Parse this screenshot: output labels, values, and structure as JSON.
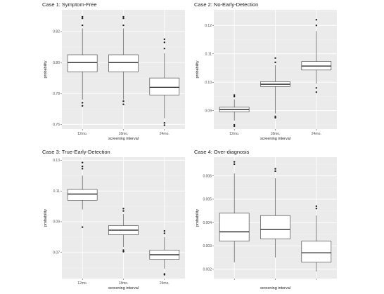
{
  "chart_data": [
    {
      "type": "box",
      "title": "Case 1: Symptom-Free",
      "xlabel": "screening interval",
      "ylabel": "probability",
      "categories": [
        "12mo.",
        "18mo.",
        "24mo."
      ],
      "ylim": [
        0.757,
        0.834
      ],
      "yticks": [
        0.76,
        0.78,
        0.8,
        0.82
      ],
      "ytick_labels": [
        "0.76",
        "0.78",
        "0.80",
        "0.82"
      ],
      "boxes": [
        {
          "category": "12mo.",
          "whisker_low": 0.776,
          "q1": 0.794,
          "median": 0.8,
          "q3": 0.805,
          "whisker_high": 0.822,
          "outliers": [
            0.8285,
            0.8295,
            0.824,
            0.772,
            0.774
          ]
        },
        {
          "category": "18mo.",
          "whisker_low": 0.776,
          "q1": 0.794,
          "median": 0.8,
          "q3": 0.805,
          "whisker_high": 0.822,
          "outliers": [
            0.8285,
            0.8295,
            0.824,
            0.773,
            0.775
          ]
        },
        {
          "category": "24mo.",
          "whisker_low": 0.764,
          "q1": 0.779,
          "median": 0.784,
          "q3": 0.79,
          "whisker_high": 0.806,
          "outliers": [
            0.815,
            0.813,
            0.809,
            0.761,
            0.7595
          ]
        }
      ],
      "grid": true
    },
    {
      "type": "box",
      "title": "Case 2: No-Early-Detection",
      "xlabel": "screening interval",
      "ylabel": "probability",
      "categories": [
        "12mo.",
        "18mo.",
        "24mo."
      ],
      "ylim": [
        0.0835,
        0.1255
      ],
      "yticks": [
        0.09,
        0.1,
        0.11,
        0.12
      ],
      "ytick_labels": [
        "0.09",
        "0.10",
        "0.11",
        "0.12"
      ],
      "boxes": [
        {
          "category": "12mo.",
          "whisker_low": 0.0865,
          "q1": 0.0896,
          "median": 0.0904,
          "q3": 0.0912,
          "whisker_high": 0.094,
          "outliers": [
            0.095,
            0.0955,
            0.085,
            0.0845
          ]
        },
        {
          "category": "18mo.",
          "whisker_low": 0.089,
          "q1": 0.0985,
          "median": 0.0993,
          "q3": 0.1002,
          "whisker_high": 0.106,
          "outliers": [
            0.1085,
            0.107,
            0.088,
            0.0875
          ]
        },
        {
          "category": "24mo.",
          "whisker_low": 0.0995,
          "q1": 0.1043,
          "median": 0.1057,
          "q3": 0.1073,
          "whisker_high": 0.118,
          "outliers": [
            0.122,
            0.12,
            0.098,
            0.0965
          ]
        }
      ],
      "grid": true
    },
    {
      "type": "box",
      "title": "Case 3: True-Early-Detection",
      "xlabel": "screening interval",
      "ylabel": "probability",
      "categories": [
        "12mo.",
        "18mo.",
        "24mo."
      ],
      "ylim": [
        0.053,
        0.132
      ],
      "yticks": [
        0.07,
        0.09,
        0.11,
        0.13
      ],
      "ytick_labels": [
        "0.07",
        "0.09",
        "0.11",
        "0.13"
      ],
      "boxes": [
        {
          "category": "12mo.",
          "whisker_low": 0.098,
          "q1": 0.104,
          "median": 0.108,
          "q3": 0.111,
          "whisker_high": 0.12,
          "outliers": [
            0.1285,
            0.126,
            0.1245,
            0.0865
          ]
        },
        {
          "category": "18mo.",
          "whisker_low": 0.0735,
          "q1": 0.0815,
          "median": 0.0845,
          "q3": 0.0875,
          "whisker_high": 0.095,
          "outliers": [
            0.0985,
            0.097,
            0.0715,
            0.0705
          ]
        },
        {
          "category": "24mo.",
          "whisker_low": 0.0595,
          "q1": 0.0655,
          "median": 0.0685,
          "q3": 0.0715,
          "whisker_high": 0.08,
          "outliers": [
            0.084,
            0.0825,
            0.056,
            0.0555
          ]
        }
      ],
      "grid": true
    },
    {
      "type": "box",
      "title": "Case 4: Over-diagnosis",
      "xlabel": "screening interval",
      "ylabel": "probability",
      "categories": [
        "",
        "",
        ""
      ],
      "ylim": [
        0.0016,
        0.0068
      ],
      "yticks": [
        0.002,
        0.003,
        0.004,
        0.005,
        0.006
      ],
      "ytick_labels": [
        "0.002",
        "0.003",
        "0.004",
        "0.005",
        "0.006"
      ],
      "boxes": [
        {
          "category": "",
          "whisker_low": 0.0023,
          "q1": 0.0032,
          "median": 0.0036,
          "q3": 0.0044,
          "whisker_high": 0.0061,
          "outliers": [
            0.0066,
            0.0065
          ]
        },
        {
          "category": "",
          "whisker_low": 0.0025,
          "q1": 0.0033,
          "median": 0.0037,
          "q3": 0.0043,
          "whisker_high": 0.0059,
          "outliers": [
            0.0063,
            0.0062
          ]
        },
        {
          "category": "",
          "whisker_low": 0.0019,
          "q1": 0.0023,
          "median": 0.0027,
          "q3": 0.0032,
          "whisker_high": 0.0043,
          "outliers": [
            0.0047,
            0.0046
          ]
        }
      ],
      "grid": true
    }
  ]
}
